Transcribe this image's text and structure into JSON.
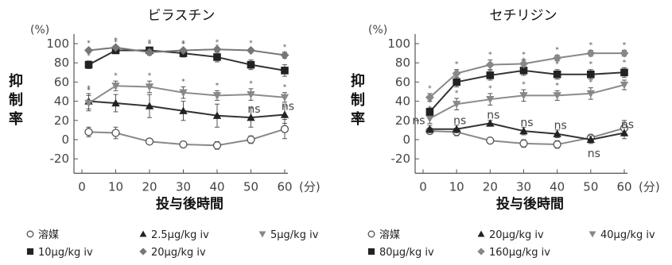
{
  "chart_data": [
    {
      "type": "line",
      "title": "ビラスチン",
      "yunit": "(%)",
      "ylabel": "抑制率",
      "xlabel": "投与後時間",
      "xunit": "(分)",
      "x": [
        2,
        10,
        20,
        30,
        40,
        50,
        60
      ],
      "xticks": [
        0,
        10,
        20,
        30,
        40,
        50,
        60
      ],
      "yticks": [
        -20,
        0,
        20,
        40,
        60,
        80,
        100
      ],
      "xlim": [
        0,
        60
      ],
      "ylim": [
        -35,
        110
      ],
      "grid": false,
      "legend_position": "bottom",
      "series": [
        {
          "name": "溶媒",
          "marker": "circle",
          "color": "#888888",
          "values": [
            8,
            7,
            -2,
            -5,
            -6,
            0,
            11
          ],
          "errors": [
            5,
            6,
            2,
            3,
            4,
            4,
            10
          ],
          "stars": [],
          "ns": []
        },
        {
          "name": "2.5μg/kg iv",
          "marker": "triangle-up",
          "color": "#333333",
          "values": [
            40,
            38,
            35,
            30,
            25,
            23,
            26
          ],
          "errors": [
            8,
            9,
            12,
            10,
            12,
            10,
            9
          ],
          "stars": [
            0,
            1,
            2,
            3,
            4
          ],
          "ns": [
            5,
            6
          ]
        },
        {
          "name": "5μg/kg iv",
          "marker": "triangle-down",
          "color": "#8c8c8c",
          "values": [
            38,
            56,
            55,
            49,
            46,
            47,
            44
          ],
          "errors": [
            8,
            5,
            6,
            6,
            5,
            6,
            5
          ],
          "stars": [
            0,
            1,
            2,
            3,
            4,
            5,
            6
          ],
          "ns": []
        },
        {
          "name": "10μg/kg iv",
          "marker": "square",
          "color": "#333333",
          "values": [
            78,
            93,
            93,
            90,
            86,
            78,
            72
          ],
          "errors": [
            4,
            3,
            3,
            4,
            5,
            5,
            6
          ],
          "stars": [
            0,
            1,
            2,
            3,
            4,
            5,
            6
          ],
          "ns": []
        },
        {
          "name": "20μg/kg iv",
          "marker": "diamond",
          "color": "#777777",
          "values": [
            93,
            96,
            91,
            93,
            94,
            93,
            88
          ],
          "errors": [
            2,
            2,
            3,
            2,
            2,
            2,
            3
          ],
          "stars": [
            0,
            1,
            2,
            3,
            4,
            5,
            6
          ],
          "ns": []
        }
      ]
    },
    {
      "type": "line",
      "title": "セチリジン",
      "yunit": "(%)",
      "ylabel": "抑制率",
      "xlabel": "投与後時間",
      "xunit": "(分)",
      "x": [
        2,
        10,
        20,
        30,
        40,
        50,
        60
      ],
      "xticks": [
        0,
        10,
        20,
        30,
        40,
        50,
        60
      ],
      "yticks": [
        -20,
        0,
        20,
        40,
        60,
        80,
        100
      ],
      "xlim": [
        0,
        60
      ],
      "ylim": [
        -35,
        110
      ],
      "grid": false,
      "legend_position": "bottom",
      "series": [
        {
          "name": "溶媒",
          "marker": "circle",
          "color": "#888888",
          "values": [
            9,
            8,
            -1,
            -4,
            -5,
            2,
            12
          ],
          "errors": [
            3,
            4,
            2,
            4,
            4,
            3,
            8
          ],
          "stars": [],
          "ns": []
        },
        {
          "name": "20μg/kg iv",
          "marker": "triangle-up",
          "color": "#333333",
          "values": [
            11,
            11,
            17,
            9,
            6,
            0,
            7
          ],
          "errors": [
            4,
            4,
            3,
            4,
            4,
            4,
            6
          ],
          "stars": [],
          "ns": [
            0,
            1,
            2,
            3,
            4,
            5,
            6
          ]
        },
        {
          "name": "40μg/kg iv",
          "marker": "triangle-down",
          "color": "#8c8c8c",
          "values": [
            22,
            37,
            42,
            46,
            46,
            48,
            57
          ],
          "errors": [
            5,
            6,
            6,
            6,
            5,
            6,
            5
          ],
          "stars": [
            0,
            1,
            2,
            3,
            4,
            5,
            6
          ],
          "ns": []
        },
        {
          "name": "80μg/kg iv",
          "marker": "square",
          "color": "#333333",
          "values": [
            29,
            60,
            67,
            72,
            68,
            68,
            70
          ],
          "errors": [
            4,
            5,
            5,
            5,
            5,
            5,
            5
          ],
          "stars": [
            0,
            1,
            2,
            3,
            4,
            5,
            6
          ],
          "ns": []
        },
        {
          "name": "160μg/kg iv",
          "marker": "diamond",
          "color": "#888888",
          "values": [
            44,
            69,
            78,
            79,
            85,
            90,
            90
          ],
          "errors": [
            4,
            4,
            5,
            4,
            3,
            3,
            3
          ],
          "stars": [
            0,
            1,
            2,
            3,
            4,
            5,
            6
          ],
          "ns": []
        }
      ]
    }
  ]
}
